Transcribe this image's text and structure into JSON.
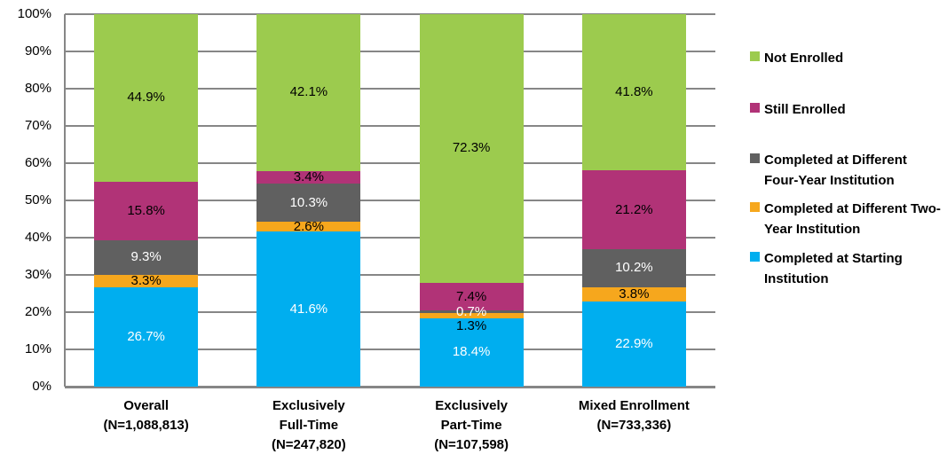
{
  "chart_data": {
    "type": "bar",
    "variant": "stacked-percent-column",
    "grid": true,
    "legend_position": "right",
    "ylim": [
      0,
      100
    ],
    "y_ticks": [
      "0%",
      "10%",
      "20%",
      "30%",
      "40%",
      "50%",
      "60%",
      "70%",
      "80%",
      "90%",
      "100%"
    ],
    "categories": [
      [
        "Overall",
        "(N=1,088,813)"
      ],
      [
        "Exclusively",
        "Full-Time",
        "(N=247,820)"
      ],
      [
        "Exclusively",
        "Part-Time",
        "(N=107,598)"
      ],
      [
        "Mixed Enrollment",
        "(N=733,336)"
      ]
    ],
    "series": [
      {
        "name": "Completed at Starting Institution",
        "color": "#00AEEF",
        "label_color": "#FFFFFF",
        "values": [
          26.7,
          41.6,
          18.4,
          22.9
        ]
      },
      {
        "name": "Completed at Different Two-Year Institution",
        "color": "#F6A71D",
        "label_color": "#000000",
        "values": [
          3.3,
          2.6,
          1.3,
          3.8
        ]
      },
      {
        "name": "Completed at Different Four-Year Institution",
        "color": "#606060",
        "label_color": "#FFFFFF",
        "values": [
          9.3,
          10.3,
          0.7,
          10.2
        ]
      },
      {
        "name": "Still Enrolled",
        "color": "#B13377",
        "label_color": "#000000",
        "values": [
          15.8,
          3.4,
          7.4,
          21.2
        ]
      },
      {
        "name": "Not Enrolled",
        "color": "#9CCB4E",
        "label_color": "#000000",
        "values": [
          44.9,
          42.1,
          72.3,
          41.8
        ]
      }
    ],
    "value_suffix": "%",
    "legend": [
      {
        "label": "Not Enrolled",
        "color": "#9CCB4E"
      },
      {
        "label": "Still Enrolled",
        "color": "#B13377"
      },
      {
        "label": "Completed at Different Four-Year Institution",
        "color": "#606060"
      },
      {
        "label": "Completed at Different Two-Year Institution",
        "color": "#F6A71D"
      },
      {
        "label": "Completed at Starting Institution",
        "color": "#00AEEF"
      }
    ]
  },
  "colors": {
    "grid": "#868686",
    "axis": "#868686",
    "background": "#FFFFFF",
    "text": "#000000"
  }
}
